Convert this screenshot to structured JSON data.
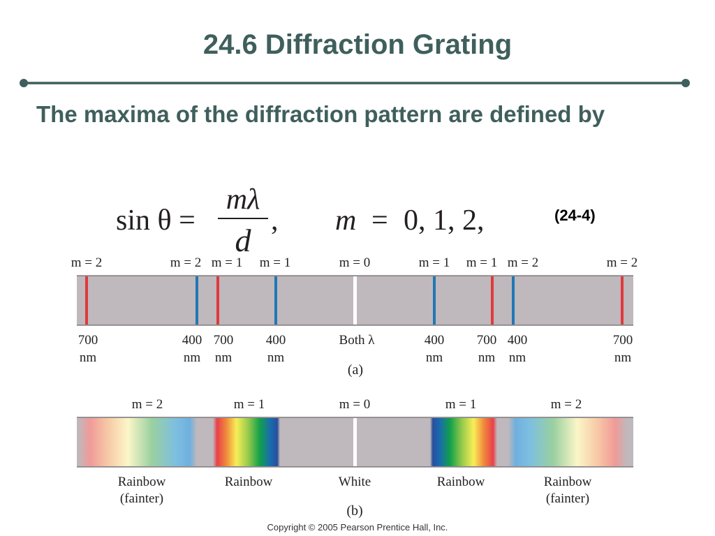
{
  "title": "24.6 Diffraction Grating",
  "body_text": "The maxima of the diffraction pattern are defined by",
  "equation": {
    "lhs": "sin θ =",
    "numerator": "mλ",
    "denominator": "d",
    "comma": ",",
    "rhs_var": "m",
    "rhs_eq": "=",
    "rhs_values": "0, 1, 2,",
    "label": "(24-4)"
  },
  "panel_a": {
    "caption": "(a)",
    "orders": [
      "m = 2",
      "m = 2",
      "m = 1",
      "m = 1",
      "m = 0",
      "m = 1",
      "m = 1",
      "m = 2",
      "m = 2"
    ],
    "wavelengths": [
      "700",
      "400",
      "700",
      "400",
      "Both λ",
      "400",
      "700",
      "400",
      "700"
    ],
    "units": [
      "nm",
      "nm",
      "nm",
      "nm",
      "",
      "nm",
      "nm",
      "nm",
      "nm"
    ],
    "line_colors": [
      "red",
      "blue",
      "red",
      "blue",
      "white",
      "blue",
      "red",
      "blue",
      "red"
    ]
  },
  "panel_b": {
    "caption": "(b)",
    "orders": [
      "m = 2",
      "m = 1",
      "m = 0",
      "m = 1",
      "m = 2"
    ],
    "labels": [
      "Rainbow",
      "Rainbow",
      "White",
      "Rainbow",
      "Rainbow"
    ],
    "sublabels": [
      "(fainter)",
      "",
      "",
      "",
      "(fainter)"
    ]
  },
  "copyright": "Copyright © 2005 Pearson Prentice Hall, Inc.",
  "colors": {
    "title": "#3f5f5c",
    "rule": "#3f5f5c",
    "band": "#bfb8bc",
    "red_line": "#e03a3c",
    "blue_line": "#1f78b4",
    "white_line": "#ffffff"
  }
}
